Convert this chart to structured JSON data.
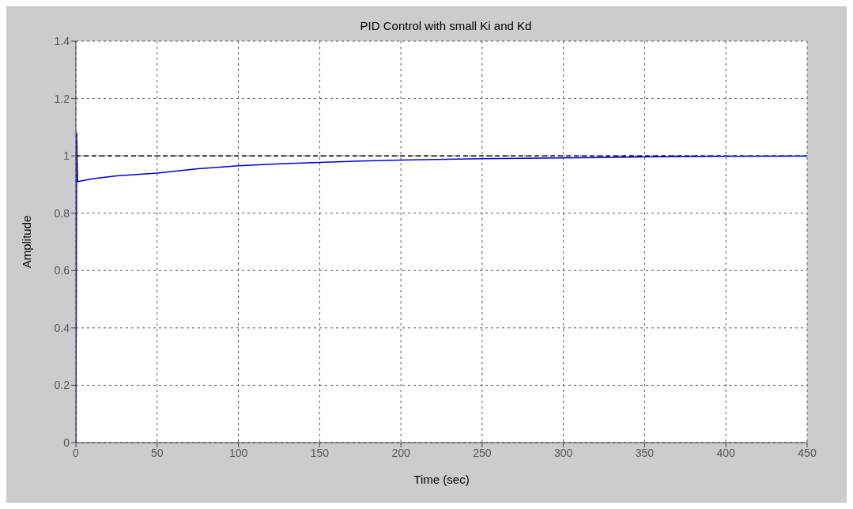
{
  "chart_data": {
    "type": "line",
    "title": "PID Control with small Ki and Kd",
    "xlabel": "Time (sec)",
    "ylabel": "Amplitude",
    "x": [
      0,
      0.5,
      1,
      10,
      25,
      50,
      75,
      100,
      125,
      150,
      175,
      200,
      250,
      300,
      350,
      400,
      450
    ],
    "series": [
      {
        "color": "#0000cc",
        "values": [
          0,
          1.08,
          0.91,
          0.92,
          0.93,
          0.94,
          0.955,
          0.965,
          0.972,
          0.977,
          0.982,
          0.985,
          0.99,
          0.993,
          0.996,
          0.998,
          0.999
        ]
      }
    ],
    "xlim": [
      0,
      450
    ],
    "xticks": [
      0,
      50,
      100,
      150,
      200,
      250,
      300,
      350,
      400,
      450
    ],
    "ylim": [
      0,
      1.4
    ],
    "yticks": [
      0,
      0.2,
      0.4,
      0.6,
      0.8,
      1,
      1.2,
      1.4
    ],
    "ref_lines": [
      {
        "axis": "y",
        "value": 1,
        "color": "#000000",
        "line_style": "dashed"
      }
    ],
    "grid": true,
    "marker": "none",
    "line_style": "solid"
  }
}
